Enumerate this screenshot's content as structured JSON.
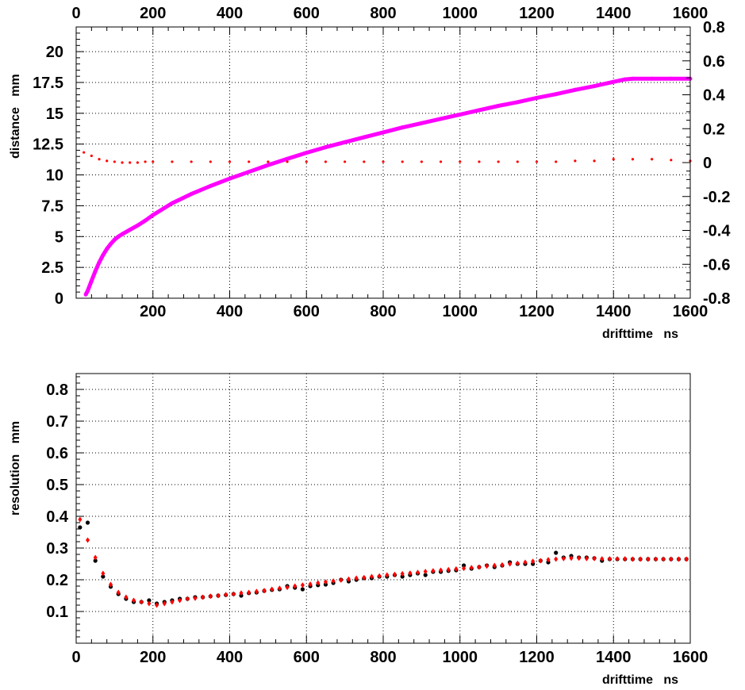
{
  "chart_data": [
    {
      "type": "scatter",
      "xlabel": "drifttime   ns",
      "ylabel": "distance   mm",
      "xlim": [
        0,
        1600
      ],
      "ylim": [
        0,
        22
      ],
      "y2lim": [
        -0.8,
        0.8
      ],
      "grid": true,
      "x_ticks": [
        "200",
        "400",
        "600",
        "800",
        "1000",
        "1200",
        "1400",
        "1600"
      ],
      "x2_ticks": [
        "0",
        "200",
        "400",
        "600",
        "800",
        "1000",
        "1200",
        "1400",
        "1600"
      ],
      "y_ticks": [
        "0",
        "2.5",
        "5",
        "7.5",
        "10",
        "12.5",
        "15",
        "17.5",
        "20"
      ],
      "y2_ticks": [
        "-0.8",
        "-0.6",
        "-0.4",
        "-0.2",
        "0",
        "0.2",
        "0.4",
        "0.6",
        "0.8"
      ],
      "series": [
        {
          "axis": "left",
          "color": "#ff00ff",
          "x": [
            25,
            30,
            40,
            50,
            60,
            70,
            80,
            90,
            100,
            110,
            120,
            140,
            160,
            180,
            200,
            250,
            300,
            350,
            400,
            450,
            500,
            550,
            600,
            650,
            700,
            750,
            800,
            850,
            900,
            950,
            1000,
            1050,
            1100,
            1150,
            1200,
            1250,
            1300,
            1350,
            1400,
            1430,
            1450,
            1500,
            1550,
            1600
          ],
          "y": [
            0.3,
            0.6,
            1.4,
            2.2,
            2.9,
            3.5,
            4.0,
            4.4,
            4.75,
            5.0,
            5.2,
            5.55,
            5.9,
            6.3,
            6.75,
            7.7,
            8.45,
            9.1,
            9.7,
            10.25,
            10.8,
            11.3,
            11.8,
            12.25,
            12.65,
            13.05,
            13.45,
            13.85,
            14.2,
            14.55,
            14.9,
            15.25,
            15.6,
            15.9,
            16.25,
            16.55,
            16.9,
            17.2,
            17.55,
            17.75,
            17.8,
            17.8,
            17.8,
            17.8
          ]
        },
        {
          "axis": "right",
          "color": "#ff0000",
          "x": [
            20,
            40,
            60,
            80,
            100,
            120,
            140,
            160,
            180,
            200,
            250,
            300,
            350,
            400,
            450,
            500,
            550,
            600,
            650,
            700,
            750,
            800,
            850,
            900,
            950,
            1000,
            1050,
            1100,
            1150,
            1200,
            1250,
            1300,
            1350,
            1400,
            1450,
            1500,
            1550,
            1600
          ],
          "y": [
            0.06,
            0.04,
            0.02,
            0.01,
            0.005,
            0.0,
            0.0,
            0.0,
            0.005,
            0.005,
            0.005,
            0.005,
            0.005,
            0.005,
            0.005,
            0.005,
            0.005,
            0.005,
            0.005,
            0.005,
            0.005,
            0.005,
            0.005,
            0.005,
            0.005,
            0.005,
            0.005,
            0.005,
            0.005,
            0.005,
            0.005,
            0.01,
            0.01,
            0.02,
            0.02,
            0.02,
            0.015,
            0.01
          ]
        }
      ]
    },
    {
      "type": "scatter",
      "xlabel": "drifttime   ns",
      "ylabel": "resolution   mm",
      "xlim": [
        0,
        1600
      ],
      "ylim": [
        0,
        0.85
      ],
      "grid": true,
      "x_ticks": [
        "0",
        "200",
        "400",
        "600",
        "800",
        "1000",
        "1200",
        "1400",
        "1600"
      ],
      "y_ticks": [
        "0.1",
        "0.2",
        "0.3",
        "0.4",
        "0.5",
        "0.6",
        "0.7",
        "0.8"
      ],
      "series": [
        {
          "color": "#000000",
          "x": [
            10,
            30,
            50,
            70,
            90,
            110,
            130,
            150,
            170,
            190,
            210,
            230,
            250,
            270,
            290,
            310,
            330,
            350,
            370,
            390,
            410,
            430,
            450,
            470,
            490,
            510,
            530,
            550,
            570,
            590,
            610,
            630,
            650,
            670,
            690,
            710,
            730,
            750,
            770,
            790,
            810,
            830,
            850,
            870,
            890,
            910,
            930,
            950,
            970,
            990,
            1010,
            1030,
            1050,
            1070,
            1090,
            1110,
            1130,
            1150,
            1170,
            1190,
            1210,
            1230,
            1250,
            1270,
            1290,
            1310,
            1330,
            1350,
            1370,
            1390,
            1410,
            1430,
            1450,
            1470,
            1490,
            1510,
            1530,
            1550,
            1570,
            1590
          ],
          "y": [
            0.365,
            0.38,
            0.26,
            0.21,
            0.178,
            0.155,
            0.14,
            0.13,
            0.13,
            0.135,
            0.125,
            0.13,
            0.135,
            0.14,
            0.14,
            0.145,
            0.145,
            0.148,
            0.15,
            0.152,
            0.155,
            0.15,
            0.158,
            0.16,
            0.165,
            0.168,
            0.17,
            0.18,
            0.175,
            0.17,
            0.18,
            0.183,
            0.185,
            0.19,
            0.2,
            0.195,
            0.2,
            0.205,
            0.205,
            0.21,
            0.21,
            0.215,
            0.21,
            0.215,
            0.22,
            0.215,
            0.225,
            0.225,
            0.228,
            0.23,
            0.245,
            0.235,
            0.24,
            0.245,
            0.24,
            0.245,
            0.255,
            0.25,
            0.25,
            0.25,
            0.26,
            0.255,
            0.285,
            0.27,
            0.275,
            0.27,
            0.27,
            0.268,
            0.26,
            0.265,
            0.265,
            0.265,
            0.265,
            0.265,
            0.265,
            0.265,
            0.265,
            0.265,
            0.265,
            0.265
          ]
        },
        {
          "color": "#ff0000",
          "x": [
            10,
            30,
            50,
            70,
            90,
            110,
            130,
            150,
            170,
            190,
            210,
            230,
            250,
            270,
            290,
            310,
            330,
            350,
            370,
            390,
            410,
            430,
            450,
            470,
            490,
            510,
            530,
            550,
            570,
            590,
            610,
            630,
            650,
            670,
            690,
            710,
            730,
            750,
            770,
            790,
            810,
            830,
            850,
            870,
            890,
            910,
            930,
            950,
            970,
            990,
            1010,
            1030,
            1050,
            1070,
            1090,
            1110,
            1130,
            1150,
            1170,
            1190,
            1210,
            1230,
            1250,
            1270,
            1290,
            1310,
            1330,
            1350,
            1370,
            1390,
            1410,
            1430,
            1450,
            1470,
            1490,
            1510,
            1530,
            1550,
            1570,
            1590
          ],
          "y": [
            0.39,
            0.325,
            0.27,
            0.22,
            0.185,
            0.16,
            0.145,
            0.135,
            0.13,
            0.125,
            0.12,
            0.125,
            0.13,
            0.135,
            0.14,
            0.142,
            0.145,
            0.148,
            0.15,
            0.153,
            0.155,
            0.158,
            0.16,
            0.163,
            0.166,
            0.17,
            0.173,
            0.176,
            0.18,
            0.183,
            0.186,
            0.19,
            0.193,
            0.196,
            0.199,
            0.202,
            0.205,
            0.207,
            0.21,
            0.212,
            0.215,
            0.217,
            0.219,
            0.221,
            0.223,
            0.226,
            0.228,
            0.23,
            0.232,
            0.234,
            0.236,
            0.238,
            0.24,
            0.243,
            0.245,
            0.247,
            0.25,
            0.252,
            0.255,
            0.258,
            0.26,
            0.263,
            0.265,
            0.267,
            0.268,
            0.268,
            0.267,
            0.267,
            0.266,
            0.266,
            0.266,
            0.266,
            0.265,
            0.265,
            0.265,
            0.265,
            0.265,
            0.265,
            0.265,
            0.265
          ]
        }
      ]
    }
  ]
}
